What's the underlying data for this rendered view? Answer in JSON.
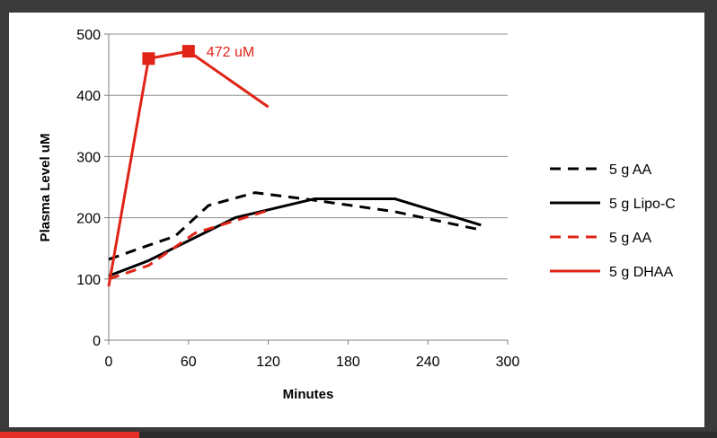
{
  "chart_data": {
    "type": "line",
    "title": "",
    "xlabel": "Minutes",
    "ylabel": "Plasma Level uM",
    "xlim": [
      0,
      300
    ],
    "ylim": [
      0,
      500
    ],
    "xticks": [
      0,
      60,
      120,
      180,
      240,
      300
    ],
    "yticks": [
      0,
      100,
      200,
      300,
      400,
      500
    ],
    "grid": "horizontal",
    "legend_position": "right",
    "series": [
      {
        "name": "5 g AA",
        "color": "#000000",
        "dash": true,
        "x": [
          0,
          30,
          50,
          75,
          110,
          150,
          215,
          280
        ],
        "y": [
          132,
          155,
          170,
          220,
          241,
          230,
          210,
          180
        ]
      },
      {
        "name": "5 g Lipo-C",
        "color": "#000000",
        "dash": false,
        "x": [
          0,
          30,
          95,
          155,
          215,
          280
        ],
        "y": [
          105,
          130,
          200,
          231,
          231,
          188
        ]
      },
      {
        "name": "5 g AA",
        "color": "#e02418",
        "dash": true,
        "x": [
          0,
          30,
          65,
          120
        ],
        "y": [
          100,
          122,
          175,
          212
        ]
      },
      {
        "name": "5 g DHAA",
        "color": "#e02418",
        "dash": false,
        "x": [
          0,
          30,
          60,
          120
        ],
        "y": [
          88,
          460,
          472,
          381
        ],
        "markers": [
          30,
          60
        ]
      }
    ],
    "annotations": [
      {
        "text": "472 uM",
        "x": 60,
        "y": 472,
        "color": "#e02418"
      }
    ]
  }
}
